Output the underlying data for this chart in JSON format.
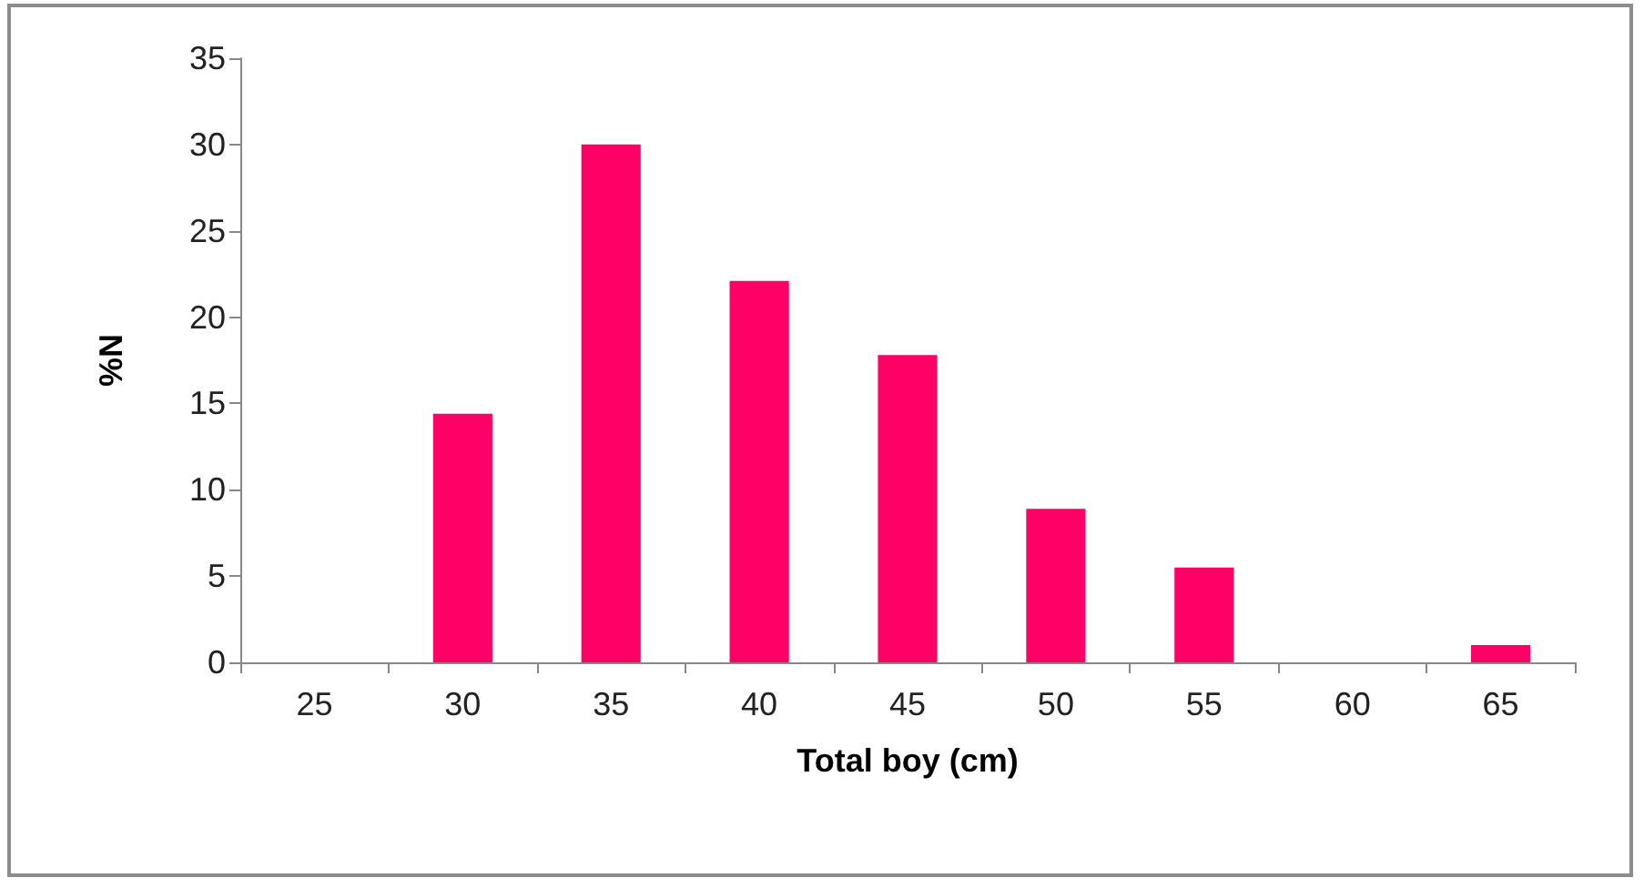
{
  "chart_data": {
    "type": "bar",
    "xlabel": "Total boy (cm)",
    "ylabel": "%N",
    "categories": [
      "25",
      "30",
      "35",
      "40",
      "45",
      "50",
      "55",
      "60",
      "65"
    ],
    "values": [
      0,
      14.4,
      30,
      22.1,
      17.8,
      8.9,
      5.5,
      0,
      1.0
    ],
    "color": "#ff0066",
    "ylim": [
      0,
      35
    ],
    "yticks": [
      0,
      5,
      10,
      15,
      20,
      25,
      30,
      35
    ]
  }
}
